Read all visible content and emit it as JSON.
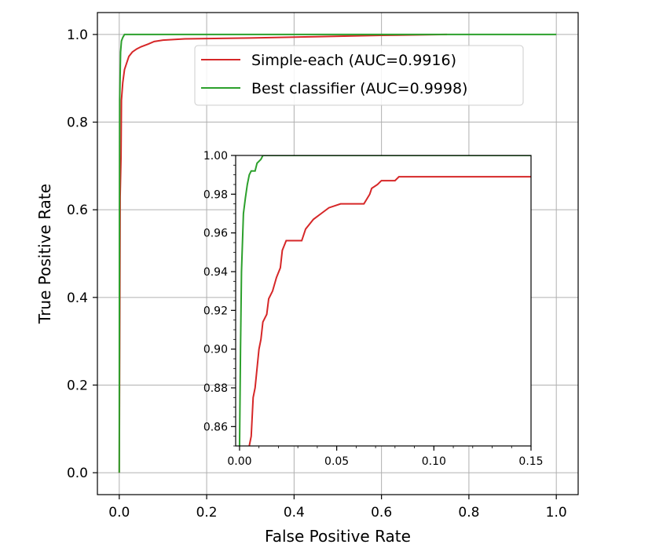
{
  "chart_data": [
    {
      "type": "line",
      "title": "",
      "xlabel": "False Positive Rate",
      "ylabel": "True Positive Rate",
      "xlim": [
        -0.05,
        1.05
      ],
      "ylim": [
        -0.05,
        1.05
      ],
      "xticks": [
        "0.0",
        "0.2",
        "0.4",
        "0.6",
        "0.8",
        "1.0"
      ],
      "yticks": [
        "0.0",
        "0.2",
        "0.4",
        "0.6",
        "0.8",
        "1.0"
      ],
      "grid": true,
      "legend_position": "upper-right",
      "series": [
        {
          "name": "Simple-each (AUC=0.9916)",
          "color": "#d62728",
          "points": [
            [
              0,
              0
            ],
            [
              0.001,
              0.3
            ],
            [
              0.002,
              0.63
            ],
            [
              0.004,
              0.72
            ],
            [
              0.005,
              0.85
            ],
            [
              0.008,
              0.89
            ],
            [
              0.012,
              0.92
            ],
            [
              0.017,
              0.935
            ],
            [
              0.022,
              0.95
            ],
            [
              0.03,
              0.96
            ],
            [
              0.04,
              0.967
            ],
            [
              0.05,
              0.972
            ],
            [
              0.066,
              0.978
            ],
            [
              0.08,
              0.984
            ],
            [
              0.1,
              0.987
            ],
            [
              0.15,
              0.99
            ],
            [
              0.3,
              0.992
            ],
            [
              0.45,
              0.995
            ],
            [
              0.6,
              0.998
            ],
            [
              0.75,
              1.0
            ]
          ]
        },
        {
          "name": "Best classifier (AUC=0.9998)",
          "color": "#2ca02c",
          "points": [
            [
              0,
              0
            ],
            [
              0.0005,
              0.6
            ],
            [
              0.001,
              0.85
            ],
            [
              0.003,
              0.96
            ],
            [
              0.005,
              0.985
            ],
            [
              0.008,
              0.993
            ],
            [
              0.012,
              1.0
            ],
            [
              1.0,
              1.0
            ]
          ]
        }
      ]
    },
    {
      "type": "line",
      "title": "",
      "xlabel": "",
      "ylabel": "",
      "xlim": [
        -0.002,
        0.15
      ],
      "ylim": [
        0.85,
        1.0
      ],
      "xticks": [
        "0.00",
        "0.05",
        "0.10",
        "0.15"
      ],
      "yticks": [
        "0.86",
        "0.88",
        "0.90",
        "0.92",
        "0.94",
        "0.96",
        "0.98",
        "1.00"
      ],
      "grid": false,
      "series": [
        {
          "name": "",
          "color": "#d62728",
          "points": [
            [
              0.005,
              0.85
            ],
            [
              0.006,
              0.855
            ],
            [
              0.007,
              0.875
            ],
            [
              0.008,
              0.88
            ],
            [
              0.009,
              0.89
            ],
            [
              0.01,
              0.9
            ],
            [
              0.011,
              0.905
            ],
            [
              0.012,
              0.914
            ],
            [
              0.014,
              0.918
            ],
            [
              0.015,
              0.926
            ],
            [
              0.017,
              0.93
            ],
            [
              0.019,
              0.937
            ],
            [
              0.021,
              0.942
            ],
            [
              0.022,
              0.951
            ],
            [
              0.024,
              0.956
            ],
            [
              0.032,
              0.956
            ],
            [
              0.034,
              0.962
            ],
            [
              0.038,
              0.967
            ],
            [
              0.042,
              0.97
            ],
            [
              0.046,
              0.973
            ],
            [
              0.052,
              0.975
            ],
            [
              0.064,
              0.975
            ],
            [
              0.067,
              0.98
            ],
            [
              0.068,
              0.983
            ],
            [
              0.071,
              0.985
            ],
            [
              0.073,
              0.987
            ],
            [
              0.08,
              0.987
            ],
            [
              0.082,
              0.989
            ],
            [
              0.15,
              0.989
            ]
          ]
        },
        {
          "name": "",
          "color": "#2ca02c",
          "points": [
            [
              0.0,
              0.85
            ],
            [
              0.0005,
              0.9
            ],
            [
              0.001,
              0.94
            ],
            [
              0.002,
              0.97
            ],
            [
              0.003,
              0.978
            ],
            [
              0.004,
              0.985
            ],
            [
              0.005,
              0.99
            ],
            [
              0.006,
              0.992
            ],
            [
              0.008,
              0.992
            ],
            [
              0.009,
              0.996
            ],
            [
              0.011,
              0.998
            ],
            [
              0.012,
              1.0
            ],
            [
              0.15,
              1.0
            ]
          ]
        }
      ]
    }
  ]
}
